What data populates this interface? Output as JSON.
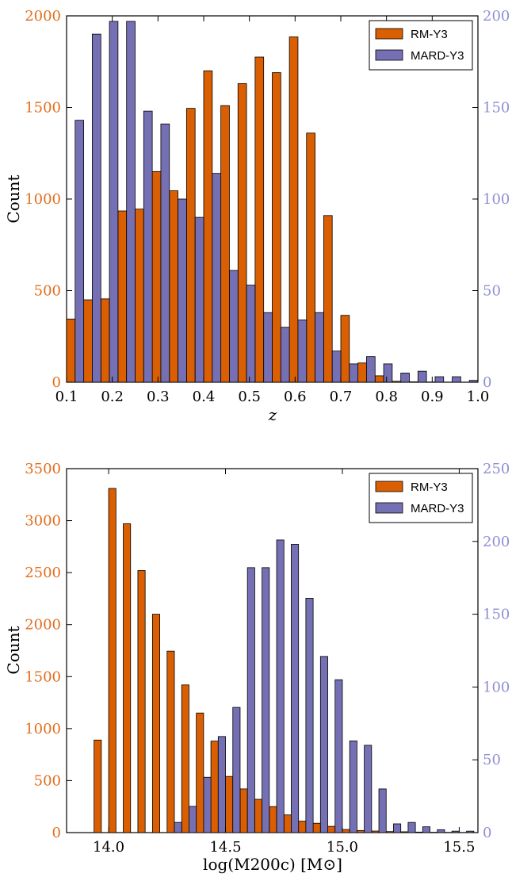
{
  "colors": {
    "rm": "#d95f02",
    "mard": "#7570b3",
    "left_tick": "#e26e1e",
    "right_tick": "#8f8fd6"
  },
  "chart_data": [
    {
      "type": "bar",
      "xlabel": "z",
      "ylabel": "Count",
      "xlim": [
        0.1,
        1.0
      ],
      "ylim_left": [
        0,
        2000
      ],
      "ylim_right": [
        0,
        200
      ],
      "x_ticks": [
        "0.1",
        "0.2",
        "0.3",
        "0.4",
        "0.5",
        "0.6",
        "0.7",
        "0.8",
        "0.9",
        "1.0"
      ],
      "y_ticks_left": [
        "0",
        "500",
        "1000",
        "1500",
        "2000"
      ],
      "y_ticks_right": [
        "0",
        "50",
        "100",
        "150",
        "200"
      ],
      "legend_position": "top-right",
      "bin_width": 0.0375,
      "x": [
        0.1,
        0.1375,
        0.175,
        0.2125,
        0.25,
        0.2875,
        0.325,
        0.3625,
        0.4,
        0.4375,
        0.475,
        0.5125,
        0.55,
        0.5875,
        0.625,
        0.6625,
        0.7,
        0.7375,
        0.775,
        0.8125,
        0.85,
        0.8875,
        0.925,
        0.9625
      ],
      "series": [
        {
          "name": "RM-Y3",
          "axis": "left",
          "values": [
            345,
            450,
            455,
            935,
            945,
            1150,
            1045,
            1495,
            1700,
            1510,
            1630,
            1775,
            1690,
            1885,
            1360,
            910,
            365,
            105,
            35,
            5,
            2,
            1,
            0,
            0
          ]
        },
        {
          "name": "MARD-Y3",
          "axis": "right",
          "values": [
            143,
            190,
            197,
            197,
            148,
            141,
            100,
            90,
            114,
            61,
            53,
            38,
            30,
            34,
            38,
            17,
            10,
            14,
            10,
            5,
            6,
            3,
            3,
            1
          ]
        }
      ]
    },
    {
      "type": "bar",
      "xlabel": "log(M200c) [M⊙]",
      "ylabel": "Count",
      "xlim": [
        13.82,
        15.58
      ],
      "ylim_left": [
        0,
        3500
      ],
      "ylim_right": [
        0,
        250
      ],
      "x_ticks": [
        "14.0",
        "14.5",
        "15.0",
        "15.5"
      ],
      "y_ticks_left": [
        "0",
        "500",
        "1000",
        "1500",
        "2000",
        "2500",
        "3000",
        "3500"
      ],
      "y_ticks_right": [
        "0",
        "50",
        "100",
        "150",
        "200",
        "250"
      ],
      "legend_position": "top-right",
      "bin_width": 0.0625,
      "x": [
        13.9375,
        14.0,
        14.0625,
        14.125,
        14.1875,
        14.25,
        14.3125,
        14.375,
        14.4375,
        14.5,
        14.5625,
        14.625,
        14.6875,
        14.75,
        14.8125,
        14.875,
        14.9375,
        15.0,
        15.0625,
        15.125,
        15.1875,
        15.25,
        15.3125,
        15.375,
        15.4375,
        15.5
      ],
      "series": [
        {
          "name": "RM-Y3",
          "axis": "left",
          "values": [
            890,
            3310,
            2970,
            2520,
            2100,
            1745,
            1420,
            1150,
            880,
            540,
            420,
            320,
            250,
            170,
            110,
            90,
            60,
            30,
            20,
            15,
            10,
            8,
            5,
            3,
            2,
            1
          ]
        },
        {
          "name": "MARD-Y3",
          "axis": "right",
          "values": [
            0,
            0,
            0,
            0,
            0,
            7,
            18,
            38,
            66,
            86,
            182,
            182,
            201,
            198,
            161,
            121,
            105,
            63,
            60,
            30,
            6,
            7,
            4,
            2,
            1,
            1
          ]
        }
      ]
    }
  ]
}
